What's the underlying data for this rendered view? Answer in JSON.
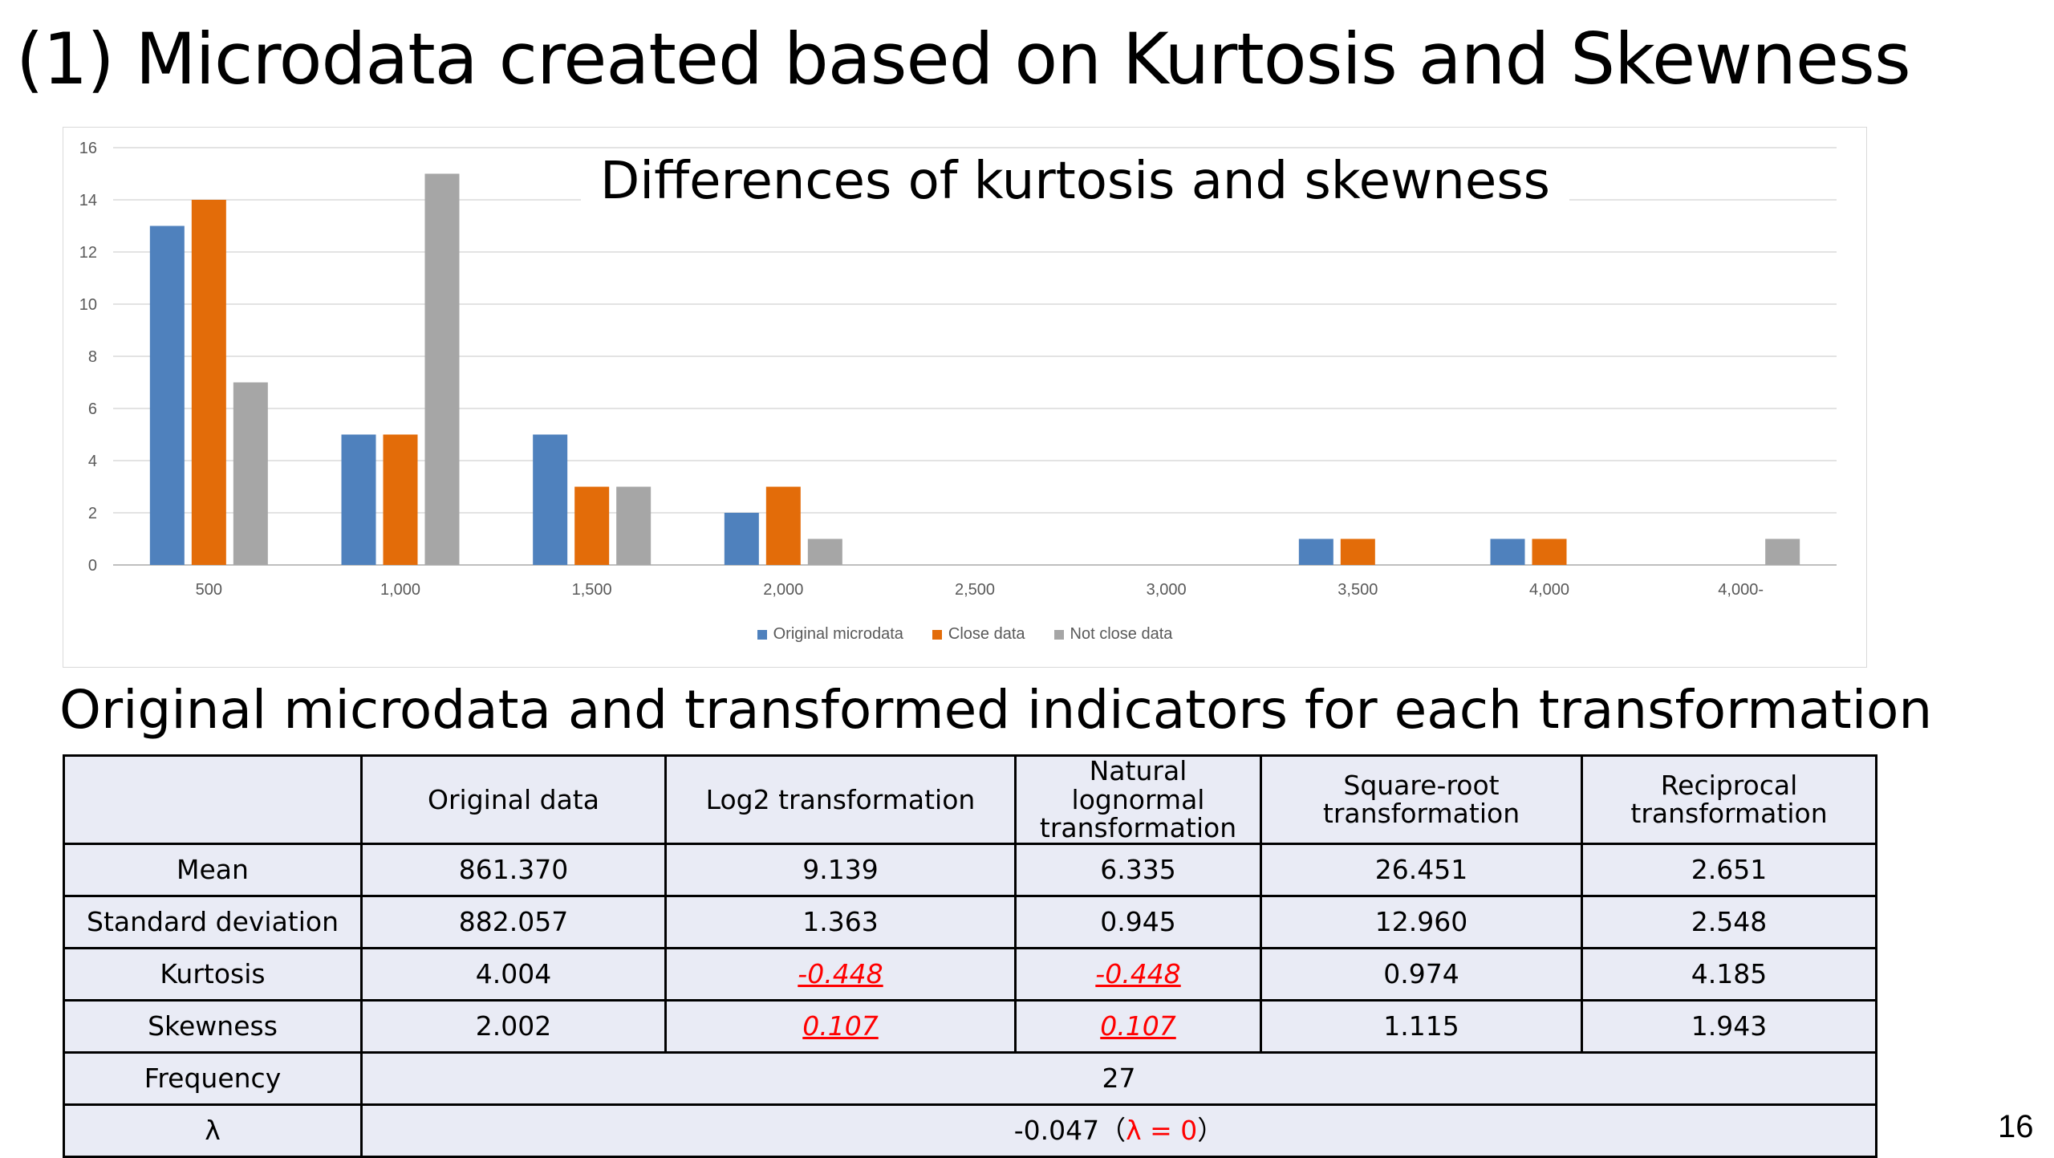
{
  "slide": {
    "title": "(1) Microdata created based on Kurtosis and Skewness",
    "page_number": "16"
  },
  "chart_data": {
    "type": "bar",
    "title": "Differences of kurtosis and skewness",
    "categories": [
      "500",
      "1,000",
      "1,500",
      "2,000",
      "2,500",
      "3,000",
      "3,500",
      "4,000",
      "4,000-"
    ],
    "series": [
      {
        "name": "Original microdata",
        "color": "#4f81bd",
        "values": [
          13,
          5,
          5,
          2,
          0,
          0,
          1,
          1,
          0
        ]
      },
      {
        "name": "Close data",
        "color": "#e36c09",
        "values": [
          14,
          5,
          3,
          3,
          0,
          0,
          1,
          1,
          0
        ]
      },
      {
        "name": "Not close data",
        "color": "#a6a6a6",
        "values": [
          7,
          15,
          3,
          1,
          0,
          0,
          0,
          0,
          1
        ]
      }
    ],
    "ylim": [
      0,
      16
    ],
    "yticks": [
      0,
      2,
      4,
      6,
      8,
      10,
      12,
      14,
      16
    ],
    "grid": true,
    "legend_position": "bottom"
  },
  "table": {
    "title": "Original microdata and transformed indicators for each transformation",
    "headers": [
      "",
      "Original data",
      "Log2 transformation",
      "Natural lognormal transformation",
      "Square-root transformation",
      "Reciprocal transformation"
    ],
    "rows": [
      {
        "label": "Mean",
        "cells": [
          "861.370",
          "9.139",
          "6.335",
          "26.451",
          "2.651"
        ]
      },
      {
        "label": "Standard deviation",
        "cells": [
          "882.057",
          "1.363",
          "0.945",
          "12.960",
          "2.548"
        ]
      },
      {
        "label": "Kurtosis",
        "cells": [
          "4.004",
          "-0.448",
          "-0.448",
          "0.974",
          "4.185"
        ]
      },
      {
        "label": "Skewness",
        "cells": [
          "2.002",
          "0.107",
          "0.107",
          "1.115",
          "1.943"
        ]
      }
    ],
    "frequency": {
      "label": "Frequency",
      "value": "27"
    },
    "lambda": {
      "label": "λ",
      "value": "-0.047（",
      "highlight": "λ = 0",
      "close": "）"
    }
  }
}
